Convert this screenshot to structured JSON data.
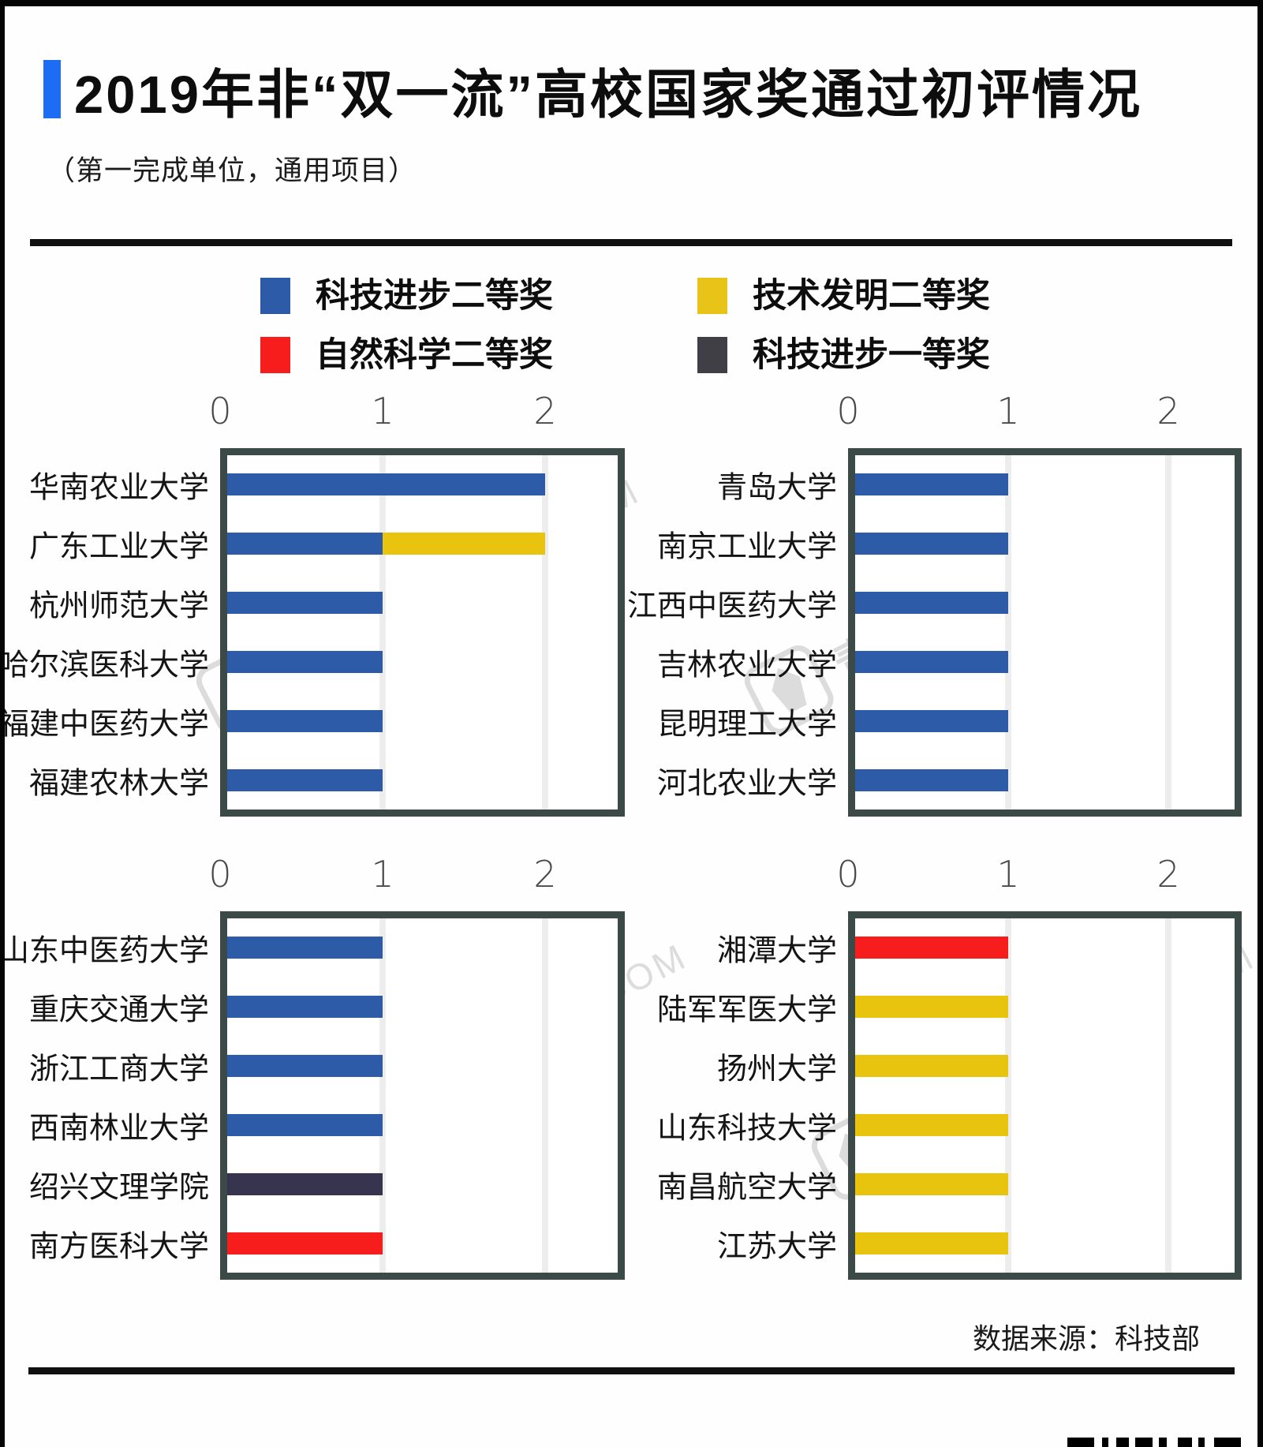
{
  "header": {
    "title": "2019年非“双一流”高校国家奖通过初评情况",
    "subtitle": "（第一完成单位，通用项目）",
    "accent_color": "#1c6cf4"
  },
  "legend": {
    "items": [
      {
        "label": "科技进步二等奖",
        "color": "#2d5ba7"
      },
      {
        "label": "技术发明二等奖",
        "color": "#e9c418"
      },
      {
        "label": "自然科学二等奖",
        "color": "#f71d1d"
      },
      {
        "label": "科技进步一等奖",
        "color": "#403f45"
      }
    ]
  },
  "awards_colors": {
    "科技进步二等奖": "#2d5ba7",
    "技术发明二等奖": "#e9c40f",
    "自然科学二等奖": "#f71d1d",
    "科技进步一等奖": "#36344e"
  },
  "chart_data": [
    {
      "type": "bar",
      "orientation": "horizontal",
      "xticks": [
        0,
        1,
        2
      ],
      "xlim": [
        0,
        2.5
      ],
      "grid": true,
      "categories": [
        "华南农业大学",
        "广东工业大学",
        "杭州师范大学",
        "哈尔滨医科大学",
        "福建中医药大学",
        "福建农林大学"
      ],
      "bars": [
        [
          {
            "award": "科技进步二等奖",
            "value": 2
          }
        ],
        [
          {
            "award": "科技进步二等奖",
            "value": 1
          },
          {
            "award": "技术发明二等奖",
            "value": 1
          }
        ],
        [
          {
            "award": "科技进步二等奖",
            "value": 1
          }
        ],
        [
          {
            "award": "科技进步二等奖",
            "value": 1
          }
        ],
        [
          {
            "award": "科技进步二等奖",
            "value": 1
          }
        ],
        [
          {
            "award": "科技进步二等奖",
            "value": 1
          }
        ]
      ]
    },
    {
      "type": "bar",
      "orientation": "horizontal",
      "xticks": [
        0,
        1,
        2
      ],
      "xlim": [
        0,
        2.5
      ],
      "grid": true,
      "categories": [
        "青岛大学",
        "南京工业大学",
        "江西中医药大学",
        "吉林农业大学",
        "昆明理工大学",
        "河北农业大学"
      ],
      "bars": [
        [
          {
            "award": "科技进步二等奖",
            "value": 1
          }
        ],
        [
          {
            "award": "科技进步二等奖",
            "value": 1
          }
        ],
        [
          {
            "award": "科技进步二等奖",
            "value": 1
          }
        ],
        [
          {
            "award": "科技进步二等奖",
            "value": 1
          }
        ],
        [
          {
            "award": "科技进步二等奖",
            "value": 1
          }
        ],
        [
          {
            "award": "科技进步二等奖",
            "value": 1
          }
        ]
      ]
    },
    {
      "type": "bar",
      "orientation": "horizontal",
      "xticks": [
        0,
        1,
        2
      ],
      "xlim": [
        0,
        2.5
      ],
      "grid": true,
      "categories": [
        "山东中医药大学",
        "重庆交通大学",
        "浙江工商大学",
        "西南林业大学",
        "绍兴文理学院",
        "南方医科大学"
      ],
      "bars": [
        [
          {
            "award": "科技进步二等奖",
            "value": 1
          }
        ],
        [
          {
            "award": "科技进步二等奖",
            "value": 1
          }
        ],
        [
          {
            "award": "科技进步二等奖",
            "value": 1
          }
        ],
        [
          {
            "award": "科技进步二等奖",
            "value": 1
          }
        ],
        [
          {
            "award": "科技进步一等奖",
            "value": 1
          }
        ],
        [
          {
            "award": "自然科学二等奖",
            "value": 1
          }
        ]
      ]
    },
    {
      "type": "bar",
      "orientation": "horizontal",
      "xticks": [
        0,
        1,
        2
      ],
      "xlim": [
        0,
        2.5
      ],
      "grid": true,
      "categories": [
        "湘潭大学",
        "陆军军医大学",
        "扬州大学",
        "山东科技大学",
        "南昌航空大学",
        "江苏大学"
      ],
      "bars": [
        [
          {
            "award": "自然科学二等奖",
            "value": 1
          }
        ],
        [
          {
            "award": "技术发明二等奖",
            "value": 1
          }
        ],
        [
          {
            "award": "技术发明二等奖",
            "value": 1
          }
        ],
        [
          {
            "award": "技术发明二等奖",
            "value": 1
          }
        ],
        [
          {
            "award": "技术发明二等奖",
            "value": 1
          }
        ],
        [
          {
            "award": "技术发明二等奖",
            "value": 1
          }
        ]
      ]
    }
  ],
  "watermark": {
    "cn": "青塔",
    "en": "QINGTA.COM"
  },
  "footer": {
    "source": "数据来源：科技部"
  }
}
